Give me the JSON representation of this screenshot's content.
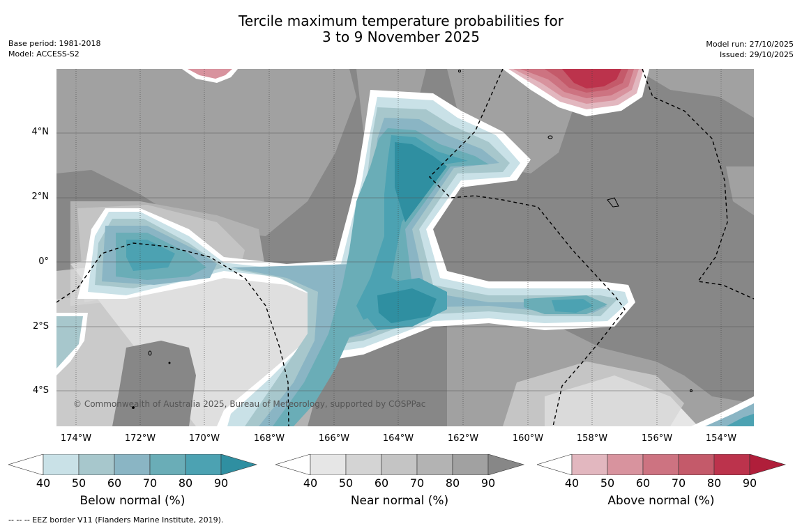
{
  "title": {
    "line1": "Tercile maximum temperature probabilities for",
    "line2": "3 to 9 November 2025"
  },
  "meta_left": {
    "base_period": "Base period: 1981-2018",
    "model": "Model: ACCESS-S2"
  },
  "meta_right": {
    "model_run": "Model run: 27/10/2025",
    "issued": "Issued: 29/10/2025"
  },
  "map": {
    "lat_labels": [
      "4°N",
      "2°N",
      "0°",
      "2°S",
      "4°S"
    ],
    "lon_labels": [
      "174°W",
      "172°W",
      "170°W",
      "168°W",
      "166°W",
      "164°W",
      "162°W",
      "160°W",
      "158°W",
      "156°W",
      "154°W"
    ],
    "copyright": "© Commonwealth of Australia 2025, Bureau of Meteorology, supported by COSPPac"
  },
  "colorbars": [
    {
      "title": "Below normal (%)",
      "ticks": [
        "40",
        "50",
        "60",
        "70",
        "80",
        "90"
      ],
      "colors": [
        "#ffffff",
        "#c9e1e7",
        "#a7c7cc",
        "#8ab5c4",
        "#6aadb7",
        "#4ca2b2",
        "#2f8fa1"
      ]
    },
    {
      "title": "Near normal (%)",
      "ticks": [
        "40",
        "50",
        "60",
        "70",
        "80",
        "90"
      ],
      "colors": [
        "#ffffff",
        "#e6e6e6",
        "#d4d4d4",
        "#c4c4c4",
        "#b3b3b3",
        "#a1a1a1",
        "#878787"
      ]
    },
    {
      "title": "Above normal (%)",
      "ticks": [
        "40",
        "50",
        "60",
        "70",
        "80",
        "90"
      ],
      "colors": [
        "#ffffff",
        "#e2b7bf",
        "#d8939e",
        "#cd7381",
        "#c45a6a",
        "#bc334c",
        "#b01e3a"
      ]
    }
  ],
  "footnote": "--  --  -- EEZ border V11 (Flanders Marine Institute, 2019)."
}
